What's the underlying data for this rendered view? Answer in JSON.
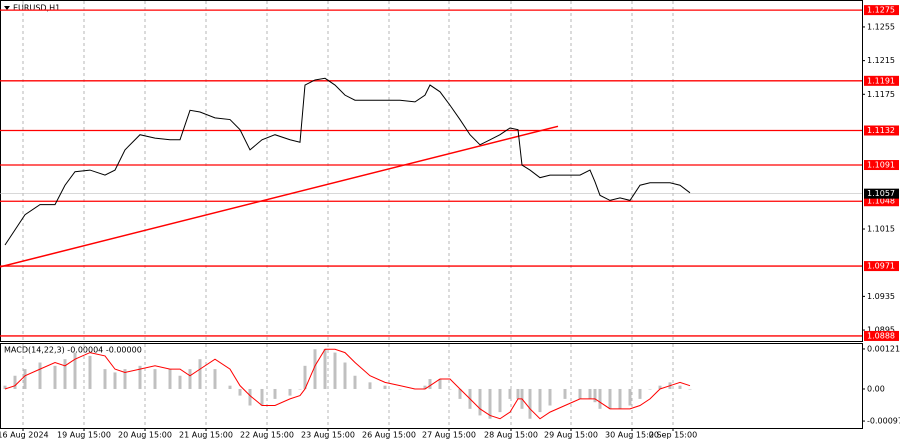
{
  "chart_data": {
    "type": "line",
    "title": "EURUSD,H1",
    "x": [
      2,
      6,
      10,
      16,
      22,
      26,
      30,
      36,
      42,
      46,
      50,
      56,
      62,
      68,
      72,
      76,
      80,
      86,
      92,
      96,
      100,
      104.8,
      110,
      116,
      120,
      122,
      126,
      130,
      134,
      138,
      142,
      148,
      154,
      160,
      166,
      170,
      172,
      176,
      180,
      184,
      188,
      192,
      196,
      200,
      204,
      207.2,
      208.8,
      212,
      216,
      220,
      226,
      232,
      236,
      238,
      240,
      244,
      248,
      252,
      256,
      260,
      264,
      268,
      272,
      276
    ],
    "values": [
      1.0996,
      1.1014,
      1.1032,
      1.1044,
      1.1044,
      1.1067,
      1.1083,
      1.1085,
      1.1079,
      1.1085,
      1.1109,
      1.1127,
      1.1123,
      1.1121,
      1.1121,
      1.1156,
      1.1154,
      1.1147,
      1.1145,
      1.1133,
      1.1109,
      1.1121,
      1.1127,
      1.1121,
      1.1118,
      1.1186,
      1.1192,
      1.1194,
      1.1186,
      1.1174,
      1.1168,
      1.1168,
      1.1168,
      1.1168,
      1.1166,
      1.1174,
      1.1186,
      1.1178,
      1.1162,
      1.1145,
      1.1127,
      1.1115,
      1.1121,
      1.1127,
      1.1135,
      1.1133,
      1.1091,
      1.1085,
      1.1076,
      1.1079,
      1.1079,
      1.1079,
      1.1085,
      1.1071,
      1.1055,
      1.1049,
      1.1052,
      1.1049,
      1.1067,
      1.107,
      1.107,
      1.107,
      1.1067,
      1.1058
    ],
    "color": "#000000",
    "xlim": [
      0,
      344.8
    ],
    "xticks": [
      {
        "value": 9.2,
        "label": "16 Aug 2024"
      },
      {
        "value": 33.6,
        "label": "19 Aug 15:00"
      },
      {
        "value": 58,
        "label": "20 Aug 15:00"
      },
      {
        "value": 82.4,
        "label": "21 Aug 15:00"
      },
      {
        "value": 106.8,
        "label": "22 Aug 15:00"
      },
      {
        "value": 131.2,
        "label": "23 Aug 15:00"
      },
      {
        "value": 155.6,
        "label": "26 Aug 15:00"
      },
      {
        "value": 179.6,
        "label": "27 Aug 15:00"
      },
      {
        "value": 204.4,
        "label": "28 Aug 15:00"
      },
      {
        "value": 228.4,
        "label": "29 Aug 15:00"
      },
      {
        "value": 252.8,
        "label": "30 Aug 15:00"
      },
      {
        "value": 269.2,
        "label": "2 Sep 15:00"
      }
    ],
    "ylim": [
      1.0882,
      1.1287
    ],
    "yticks": [
      1.1255,
      1.1215,
      1.1175,
      1.1015,
      1.0935,
      1.0895
    ],
    "grid": true,
    "levels": [
      1.1275,
      1.1191,
      1.1132,
      1.1091,
      1.1048,
      1.0971,
      1.0888
    ],
    "level_color": "#ff0000",
    "last_price": 1.1057,
    "trendline": {
      "x": [
        0,
        223.2
      ],
      "y": [
        1.097,
        1.1137
      ]
    },
    "macd": {
      "label": "MACD(14,22,3) -0.00004 -0.00000",
      "values": [
        0.0001,
        0.0004,
        0.0006,
        0.0008,
        0.0007,
        0.0009,
        0.0011,
        0.001,
        0.0006,
        0.0005,
        0.0006,
        0.0007,
        0.0006,
        0.0006,
        0.0004,
        0.0006,
        0.0009,
        0.0006,
        0.0001,
        -0.0002,
        -0.0005,
        -0.0005,
        -0.0003,
        -0.0002,
        0.0,
        0.0007,
        0.0012,
        0.0012,
        0.0011,
        0.0008,
        0.0004,
        0.0002,
        0.0001,
        0.0,
        0.0,
        0.0001,
        0.0003,
        0.0003,
        0.0,
        -0.0003,
        -0.0006,
        -0.0008,
        -0.0009,
        -0.0007,
        -0.0003,
        -0.0003,
        -0.0006,
        -0.0009,
        -0.0007,
        -0.0005,
        -0.0003,
        -0.0003,
        -0.0003,
        -0.0004,
        -0.0006,
        -0.0006,
        -0.0006,
        -0.0005,
        -0.0003,
        0.0,
        0.0001,
        0.0002,
        0.0001,
        0.0
      ],
      "signal": [
        0.0,
        0.0001,
        0.0004,
        0.0006,
        0.0008,
        0.0007,
        0.0009,
        0.0011,
        0.001,
        0.0006,
        0.0005,
        0.0006,
        0.0007,
        0.0006,
        0.0006,
        0.0004,
        0.0006,
        0.0009,
        0.0006,
        0.0001,
        -0.0002,
        -0.0005,
        -0.0005,
        -0.0003,
        -0.0002,
        0.0,
        0.0007,
        0.0012,
        0.0012,
        0.0011,
        0.0008,
        0.0004,
        0.0002,
        0.0001,
        0.0,
        0.0,
        0.0001,
        0.0003,
        0.0003,
        0.0,
        -0.0003,
        -0.0006,
        -0.0008,
        -0.0009,
        -0.0007,
        -0.0003,
        -0.0003,
        -0.0006,
        -0.0009,
        -0.0007,
        -0.0005,
        -0.0003,
        -0.0003,
        -0.0003,
        -0.0004,
        -0.0006,
        -0.0006,
        -0.0006,
        -0.0005,
        -0.0003,
        0.0,
        0.0001,
        0.0002,
        0.0001
      ],
      "color": "#c0c0c0",
      "signal_color": "#ff0000",
      "ylim": [
        -0.00118,
        0.00139
      ],
      "yticks": [
        {
          "value": 0.00121,
          "label": "0.00121"
        },
        {
          "value": 0,
          "label": "0.00"
        },
        {
          "value": -0.00097,
          "label": "-0.00097"
        }
      ]
    }
  }
}
